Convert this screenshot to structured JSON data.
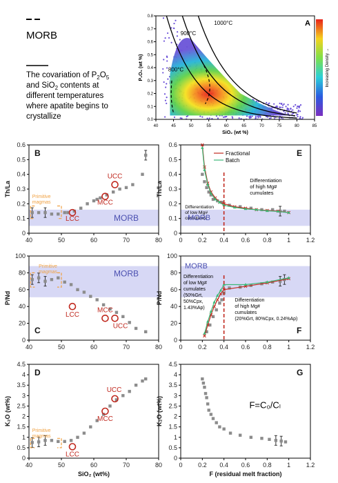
{
  "legend": {
    "morb_label": "MORB",
    "caption_line1": "The covariation of P",
    "caption_sub1": "2",
    "caption_mid1": "O",
    "caption_sub2": "5",
    "caption_line2a": "and SiO",
    "caption_sub3": "2",
    "caption_line2b": " contents at",
    "caption_line3": "different temperatures",
    "caption_line4": "where apatite begins to",
    "caption_line5": "crystallize"
  },
  "colors": {
    "morb_band": "#d7d8f5",
    "grey_points": "#8c8c8c",
    "orange": "#f0a040",
    "red": "#c0281e",
    "blue_text": "#4a4fb0",
    "green": "#3cb878"
  },
  "panel_a": {
    "letter": "A",
    "xlabel": "SiO₂ (wt %)",
    "ylabel": "P₂O₅ (wt %)",
    "xticks": [
      "40",
      "45",
      "50",
      "55",
      "60",
      "65",
      "70",
      "75",
      "80",
      "85"
    ],
    "yticks": [
      "0.0",
      "0.1",
      "0.2",
      "0.3",
      "0.4",
      "0.5",
      "0.6",
      "0.7",
      "0.8"
    ],
    "xlim": [
      40,
      85
    ],
    "ylim": [
      0,
      0.8
    ],
    "isotherms": [
      "1000°C",
      "900°C",
      "800°C"
    ],
    "colorbar_label": "Increasing Density →"
  },
  "chart_data": [
    {
      "id": "B",
      "type": "scatter",
      "xlabel": "",
      "ylabel": "Th/La",
      "xlim": [
        40,
        80
      ],
      "ylim": [
        0,
        0.6
      ],
      "xticks": [
        "40",
        "50",
        "60",
        "70",
        "80"
      ],
      "yticks": [
        "0",
        "0.1",
        "0.2",
        "0.3",
        "0.4",
        "0.5",
        "0.6"
      ],
      "band": [
        0.05,
        0.16
      ],
      "series": [
        {
          "x": [
            41,
            43,
            45,
            47,
            49,
            51,
            52,
            54,
            56,
            58,
            60,
            61,
            62,
            64,
            66,
            68,
            70,
            72,
            75
          ],
          "y": [
            0.14,
            0.14,
            0.14,
            0.13,
            0.13,
            0.14,
            0.14,
            0.15,
            0.17,
            0.2,
            0.22,
            0.23,
            0.24,
            0.26,
            0.28,
            0.3,
            0.31,
            0.33,
            0.4
          ]
        },
        {
          "x": [
            76
          ],
          "y": [
            0.53
          ]
        }
      ],
      "labels": [
        {
          "text": "UCC",
          "x": 66.5,
          "y": 0.33
        },
        {
          "text": "MCC",
          "x": 63.5,
          "y": 0.25
        },
        {
          "text": "LCC",
          "x": 53.4,
          "y": 0.14
        }
      ],
      "primitive": "Primitive\nmagmas",
      "morb_text": "MORB"
    },
    {
      "id": "C",
      "type": "scatter",
      "xlabel": "",
      "ylabel": "P/Nd",
      "xlim": [
        40,
        80
      ],
      "ylim": [
        0,
        100
      ],
      "xticks": [
        "40",
        "50",
        "60",
        "70",
        "80"
      ],
      "yticks": [
        "0",
        "20",
        "40",
        "60",
        "80",
        "100"
      ],
      "band": [
        51,
        88
      ],
      "series": [
        {
          "x": [
            41,
            43,
            45,
            47,
            49,
            51,
            53,
            55,
            57,
            59,
            61,
            63,
            65,
            67,
            69,
            71,
            73,
            76
          ],
          "y": [
            72,
            74,
            70,
            72,
            74,
            69,
            66,
            60,
            57,
            52,
            48,
            42,
            37,
            33,
            28,
            21,
            14,
            10
          ]
        }
      ],
      "labels": [
        {
          "text": "LCC",
          "x": 53.4,
          "y": 40
        },
        {
          "text": "MCC",
          "x": 63.5,
          "y": 26
        },
        {
          "text": "UCC",
          "x": 66.5,
          "y": 26
        }
      ],
      "primitive": "Primitive\nmagmas",
      "morb_text": "MORB"
    },
    {
      "id": "D",
      "type": "scatter",
      "xlabel": "SiO₂ (wt%)",
      "ylabel": "K₂O (wt%)",
      "xlim": [
        40,
        80
      ],
      "ylim": [
        0,
        4.5
      ],
      "xticks": [
        "40",
        "50",
        "60",
        "70",
        "80"
      ],
      "yticks": [
        "0",
        "0.5",
        "1",
        "1.5",
        "2",
        "2.5",
        "3",
        "3.5",
        "4",
        "4.5"
      ],
      "series": [
        {
          "x": [
            41,
            43,
            45,
            47,
            49,
            51,
            53,
            55,
            57,
            59,
            61,
            63,
            65,
            67,
            69,
            71,
            73,
            75,
            76
          ],
          "y": [
            0.75,
            0.78,
            0.85,
            0.85,
            0.8,
            0.8,
            0.85,
            1.0,
            1.2,
            1.5,
            1.8,
            2.1,
            2.5,
            2.8,
            3.0,
            3.2,
            3.5,
            3.7,
            3.8
          ]
        }
      ],
      "labels": [
        {
          "text": "UCC",
          "x": 66.5,
          "y": 2.85
        },
        {
          "text": "MCC",
          "x": 63.5,
          "y": 2.25
        },
        {
          "text": "LCC",
          "x": 53.4,
          "y": 0.55
        }
      ],
      "primitive": "Primitive\nmagmas"
    },
    {
      "id": "E",
      "type": "line",
      "xlabel": "",
      "ylabel": "Th/La",
      "xlim": [
        0,
        1.2
      ],
      "ylim": [
        0,
        0.6
      ],
      "xticks": [
        "0",
        "0.2",
        "0.4",
        "0.6",
        "0.8",
        "1",
        "1.2"
      ],
      "yticks": [
        "0",
        "0.1",
        "0.2",
        "0.3",
        "0.4",
        "0.5",
        "0.6"
      ],
      "band": [
        0.05,
        0.16
      ],
      "series": [
        {
          "name": "Fractional",
          "x": [
            0.2,
            0.22,
            0.25,
            0.28,
            0.32,
            0.36,
            0.4,
            0.5,
            0.6,
            0.7,
            0.8,
            0.9,
            1.0
          ],
          "y": [
            0.6,
            0.45,
            0.34,
            0.28,
            0.24,
            0.21,
            0.2,
            0.18,
            0.17,
            0.16,
            0.155,
            0.15,
            0.14
          ]
        },
        {
          "name": "Batch",
          "x": [
            0.2,
            0.22,
            0.25,
            0.28,
            0.32,
            0.36,
            0.4,
            0.5,
            0.6,
            0.7,
            0.8,
            0.9,
            1.0
          ],
          "y": [
            0.58,
            0.43,
            0.33,
            0.27,
            0.23,
            0.21,
            0.19,
            0.175,
            0.165,
            0.16,
            0.152,
            0.148,
            0.14
          ]
        },
        {
          "name": "points",
          "x": [
            0.2,
            0.22,
            0.24,
            0.26,
            0.28,
            0.3,
            0.34,
            0.38,
            0.45,
            0.55,
            0.65,
            0.75,
            0.85,
            0.92,
            0.96
          ],
          "y": [
            0.4,
            0.35,
            0.31,
            0.28,
            0.26,
            0.23,
            0.22,
            0.21,
            0.19,
            0.18,
            0.17,
            0.16,
            0.16,
            0.15,
            0.15
          ]
        }
      ],
      "annotations": [
        "Differentiation\nof high Mg#\ncumulates",
        "Differentiation\nof low Mg#\ncumulates"
      ],
      "dashed_x": 0.4,
      "morb_text": "MORB"
    },
    {
      "id": "F",
      "type": "line",
      "xlabel": "",
      "ylabel": "P/Nd",
      "xlim": [
        0,
        1.2
      ],
      "ylim": [
        0,
        100
      ],
      "xticks": [
        "0",
        "0.2",
        "0.4",
        "0.6",
        "0.8",
        "1",
        "1.2"
      ],
      "yticks": [
        "0",
        "20",
        "40",
        "60",
        "80",
        "100"
      ],
      "band": [
        51,
        88
      ],
      "series": [
        {
          "name": "Fractional",
          "x": [
            0.22,
            0.25,
            0.28,
            0.31,
            0.34,
            0.37,
            0.4,
            0.6,
            0.8,
            1.0
          ],
          "y": [
            5,
            18,
            30,
            40,
            48,
            55,
            60,
            64,
            68,
            73
          ]
        },
        {
          "name": "Batch",
          "x": [
            0.22,
            0.25,
            0.28,
            0.31,
            0.34,
            0.37,
            0.4,
            0.6,
            0.8,
            1.0
          ],
          "y": [
            8,
            22,
            34,
            45,
            53,
            59,
            66,
            66,
            69,
            74
          ]
        },
        {
          "name": "points",
          "x": [
            0.24,
            0.27,
            0.3,
            0.33,
            0.36,
            0.38,
            0.4,
            0.45,
            0.55,
            0.65,
            0.75,
            0.85,
            0.92,
            0.96
          ],
          "y": [
            10,
            18,
            28,
            36,
            44,
            48,
            56,
            62,
            63,
            65,
            67,
            69,
            70,
            72
          ]
        }
      ],
      "annotations": [
        "MORB",
        "Differentiation\nof low Mg#\ncumulates\n(50%Grt,\n50%Cpx,\n1.43%Ap)",
        "Differentiation\nof high Mg#\ncumulates\n(20%Grt, 80%Cpx, 0.24%Ap)"
      ],
      "dashed_x": 0.4
    },
    {
      "id": "G",
      "type": "scatter",
      "xlabel": "F (residual melt fraction)",
      "ylabel": "K₂O (wt%)",
      "xlim": [
        0,
        1.2
      ],
      "ylim": [
        0,
        4.5
      ],
      "xticks": [
        "0",
        "0.2",
        "0.4",
        "0.6",
        "0.8",
        "1",
        "1.2"
      ],
      "yticks": [
        "0",
        "0.5",
        "1",
        "1.5",
        "2",
        "2.5",
        "3",
        "3.5",
        "4",
        "4.5"
      ],
      "series": [
        {
          "x": [
            0.2,
            0.21,
            0.22,
            0.23,
            0.24,
            0.25,
            0.26,
            0.28,
            0.3,
            0.33,
            0.36,
            0.4,
            0.46,
            0.55,
            0.65,
            0.75,
            0.82,
            0.88,
            0.93,
            0.97
          ],
          "y": [
            3.8,
            3.6,
            3.4,
            3.1,
            2.9,
            2.6,
            2.3,
            2.1,
            1.9,
            1.7,
            1.5,
            1.4,
            1.2,
            1.1,
            1.0,
            0.95,
            0.9,
            0.85,
            0.82,
            0.78
          ]
        }
      ],
      "formula": "F=C₀/Cₗ"
    }
  ]
}
